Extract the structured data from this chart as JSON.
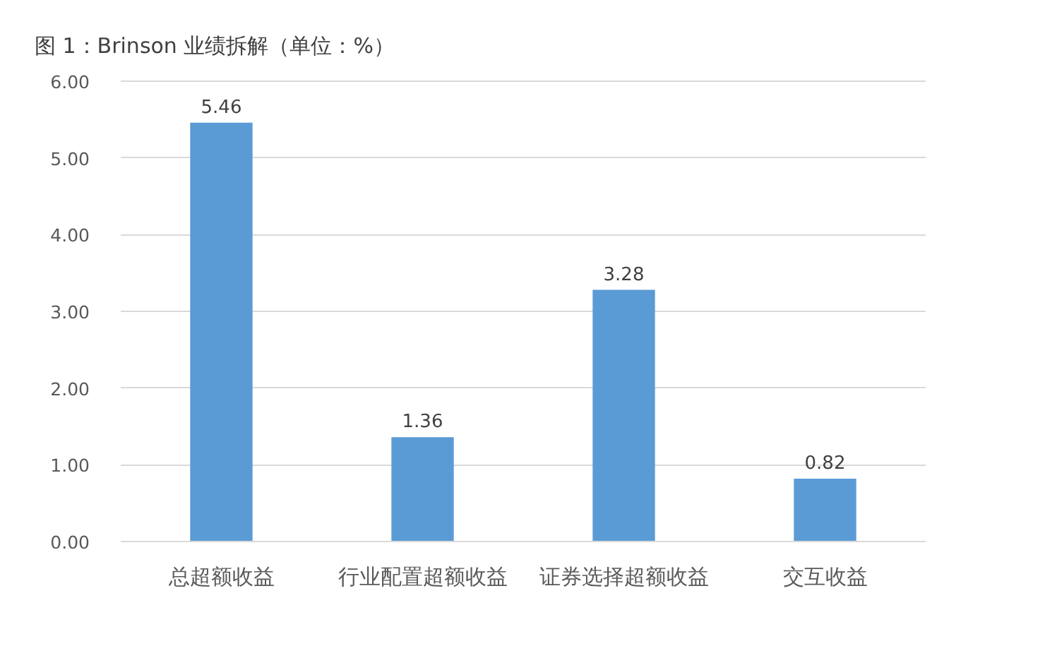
{
  "chart_data": {
    "type": "bar",
    "title": "图 1：Brinson 业绩拆解（单位：%）",
    "categories": [
      "总超额收益",
      "行业配置超额收益",
      "证券选择超额收益",
      "交互收益"
    ],
    "values": [
      5.46,
      1.36,
      3.28,
      0.82
    ],
    "color": "#5b9bd5",
    "ylim": [
      0,
      6
    ],
    "yticks": [
      {
        "value": 0,
        "label": "0.00"
      },
      {
        "value": 1,
        "label": "1.00"
      },
      {
        "value": 2,
        "label": "2.00"
      },
      {
        "value": 3,
        "label": "3.00"
      },
      {
        "value": 4,
        "label": "4.00"
      },
      {
        "value": 5,
        "label": "5.00"
      },
      {
        "value": 6,
        "label": "6.00"
      }
    ],
    "grid": "y",
    "data_labels": true
  }
}
